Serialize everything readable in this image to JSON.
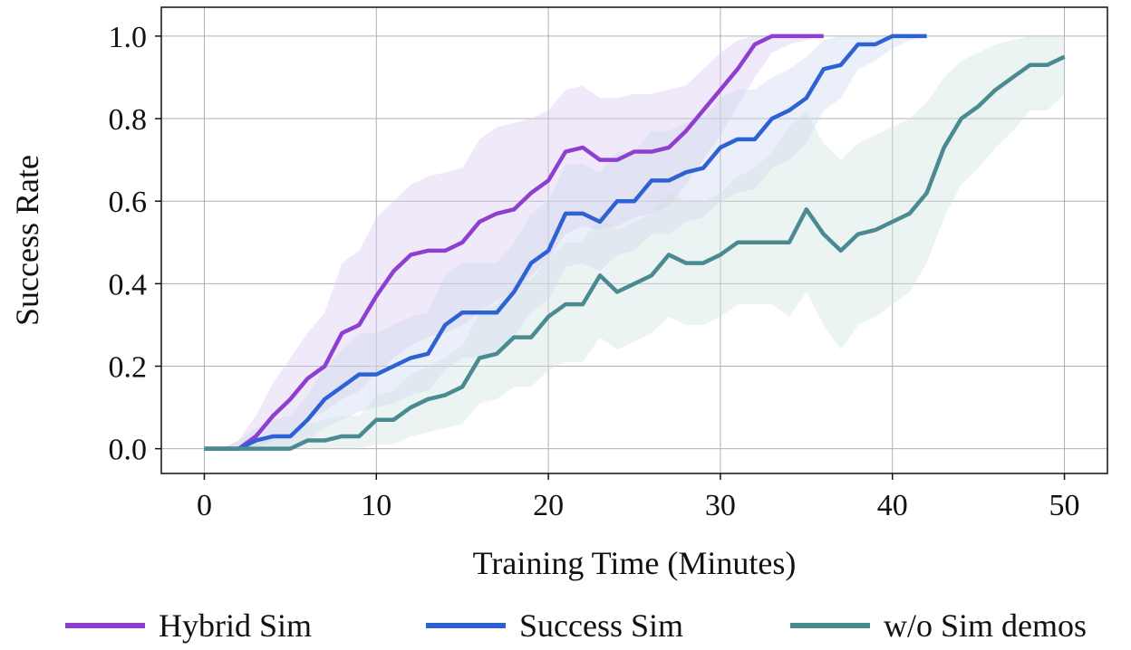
{
  "chart_data": {
    "type": "line",
    "xlabel": "Training Time (Minutes)",
    "ylabel": "Success Rate",
    "xlim": [
      -2.5,
      52.5
    ],
    "ylim": [
      -0.06,
      1.07
    ],
    "xticks": [
      0,
      10,
      20,
      30,
      40,
      50
    ],
    "yticks": [
      0.0,
      0.2,
      0.4,
      0.6,
      0.8,
      1.0
    ],
    "xtick_labels": [
      "0",
      "10",
      "20",
      "30",
      "40",
      "50"
    ],
    "ytick_labels": [
      "0.0",
      "0.2",
      "0.4",
      "0.6",
      "0.8",
      "1.0"
    ],
    "grid": true,
    "legend_position": "bottom",
    "series": [
      {
        "name": "Hybrid Sim",
        "color": "#8e3fd0",
        "band_color": "#d9c8ef",
        "x": [
          0,
          1,
          2,
          3,
          4,
          5,
          6,
          7,
          8,
          9,
          10,
          11,
          12,
          13,
          14,
          15,
          16,
          17,
          18,
          19,
          20,
          21,
          22,
          23,
          24,
          25,
          26,
          27,
          28,
          29,
          30,
          31,
          32,
          33,
          34,
          35,
          36
        ],
        "y": [
          0.0,
          0.0,
          0.0,
          0.03,
          0.08,
          0.12,
          0.17,
          0.2,
          0.28,
          0.3,
          0.37,
          0.43,
          0.47,
          0.48,
          0.48,
          0.5,
          0.55,
          0.57,
          0.58,
          0.62,
          0.65,
          0.72,
          0.73,
          0.7,
          0.7,
          0.72,
          0.72,
          0.73,
          0.77,
          0.82,
          0.87,
          0.92,
          0.98,
          1.0,
          1.0,
          1.0,
          1.0
        ],
        "lower": [
          0.0,
          0.0,
          0.0,
          0.0,
          0.02,
          0.04,
          0.07,
          0.09,
          0.12,
          0.14,
          0.18,
          0.22,
          0.25,
          0.27,
          0.28,
          0.3,
          0.33,
          0.36,
          0.38,
          0.42,
          0.46,
          0.52,
          0.54,
          0.53,
          0.54,
          0.56,
          0.57,
          0.59,
          0.64,
          0.7,
          0.76,
          0.83,
          0.9,
          0.96,
          0.98,
          0.99,
          1.0
        ],
        "upper": [
          0.0,
          0.0,
          0.02,
          0.08,
          0.16,
          0.22,
          0.28,
          0.33,
          0.45,
          0.48,
          0.56,
          0.6,
          0.64,
          0.66,
          0.67,
          0.68,
          0.75,
          0.78,
          0.79,
          0.8,
          0.82,
          0.87,
          0.88,
          0.85,
          0.85,
          0.86,
          0.86,
          0.87,
          0.88,
          0.92,
          0.96,
          0.99,
          1.0,
          1.0,
          1.0,
          1.0,
          1.0
        ]
      },
      {
        "name": "Success Sim",
        "color": "#2e62d3",
        "band_color": "#cdd8ef",
        "x": [
          0,
          1,
          2,
          3,
          4,
          5,
          6,
          7,
          8,
          9,
          10,
          11,
          12,
          13,
          14,
          15,
          16,
          17,
          18,
          19,
          20,
          21,
          22,
          23,
          24,
          25,
          26,
          27,
          28,
          29,
          30,
          31,
          32,
          33,
          34,
          35,
          36,
          37,
          38,
          39,
          40,
          41,
          42
        ],
        "y": [
          0.0,
          0.0,
          0.0,
          0.02,
          0.03,
          0.03,
          0.07,
          0.12,
          0.15,
          0.18,
          0.18,
          0.2,
          0.22,
          0.23,
          0.3,
          0.33,
          0.33,
          0.33,
          0.38,
          0.45,
          0.48,
          0.57,
          0.57,
          0.55,
          0.6,
          0.6,
          0.65,
          0.65,
          0.67,
          0.68,
          0.73,
          0.75,
          0.75,
          0.8,
          0.82,
          0.85,
          0.92,
          0.93,
          0.98,
          0.98,
          1.0,
          1.0,
          1.0
        ],
        "lower": [
          0.0,
          0.0,
          0.0,
          0.0,
          0.0,
          0.0,
          0.02,
          0.05,
          0.07,
          0.09,
          0.1,
          0.11,
          0.13,
          0.14,
          0.19,
          0.22,
          0.22,
          0.23,
          0.27,
          0.33,
          0.36,
          0.44,
          0.45,
          0.43,
          0.47,
          0.48,
          0.52,
          0.52,
          0.55,
          0.56,
          0.6,
          0.62,
          0.63,
          0.68,
          0.7,
          0.74,
          0.82,
          0.85,
          0.92,
          0.94,
          0.97,
          0.99,
          1.0
        ],
        "upper": [
          0.0,
          0.0,
          0.02,
          0.05,
          0.07,
          0.08,
          0.13,
          0.2,
          0.24,
          0.28,
          0.28,
          0.3,
          0.32,
          0.33,
          0.42,
          0.45,
          0.45,
          0.45,
          0.5,
          0.57,
          0.6,
          0.69,
          0.69,
          0.67,
          0.72,
          0.72,
          0.77,
          0.77,
          0.79,
          0.8,
          0.85,
          0.87,
          0.87,
          0.9,
          0.92,
          0.95,
          0.99,
          1.0,
          1.0,
          1.0,
          1.0,
          1.0,
          1.0
        ]
      },
      {
        "name": "w/o Sim demos",
        "color": "#4a8a91",
        "band_color": "#cfe2e2",
        "x": [
          0,
          1,
          2,
          3,
          4,
          5,
          6,
          7,
          8,
          9,
          10,
          11,
          12,
          13,
          14,
          15,
          16,
          17,
          18,
          19,
          20,
          21,
          22,
          23,
          24,
          25,
          26,
          27,
          28,
          29,
          30,
          31,
          32,
          33,
          34,
          35,
          36,
          37,
          38,
          39,
          40,
          41,
          42,
          43,
          44,
          45,
          46,
          47,
          48,
          49,
          50
        ],
        "y": [
          0.0,
          0.0,
          0.0,
          0.0,
          0.0,
          0.0,
          0.02,
          0.02,
          0.03,
          0.03,
          0.07,
          0.07,
          0.1,
          0.12,
          0.13,
          0.15,
          0.22,
          0.23,
          0.27,
          0.27,
          0.32,
          0.35,
          0.35,
          0.42,
          0.38,
          0.4,
          0.42,
          0.47,
          0.45,
          0.45,
          0.47,
          0.5,
          0.5,
          0.5,
          0.5,
          0.58,
          0.52,
          0.48,
          0.52,
          0.53,
          0.55,
          0.57,
          0.62,
          0.73,
          0.8,
          0.83,
          0.87,
          0.9,
          0.93,
          0.93,
          0.95
        ],
        "lower": [
          0.0,
          0.0,
          0.0,
          0.0,
          0.0,
          0.0,
          0.0,
          0.0,
          0.0,
          0.0,
          0.01,
          0.01,
          0.03,
          0.04,
          0.05,
          0.06,
          0.11,
          0.12,
          0.15,
          0.15,
          0.19,
          0.21,
          0.21,
          0.27,
          0.24,
          0.26,
          0.28,
          0.32,
          0.3,
          0.3,
          0.32,
          0.35,
          0.35,
          0.35,
          0.32,
          0.38,
          0.3,
          0.24,
          0.3,
          0.32,
          0.35,
          0.38,
          0.45,
          0.56,
          0.64,
          0.68,
          0.73,
          0.77,
          0.82,
          0.82,
          0.86
        ],
        "upper": [
          0.0,
          0.0,
          0.0,
          0.02,
          0.03,
          0.04,
          0.06,
          0.07,
          0.08,
          0.08,
          0.13,
          0.14,
          0.18,
          0.2,
          0.22,
          0.25,
          0.33,
          0.35,
          0.4,
          0.41,
          0.46,
          0.5,
          0.5,
          0.57,
          0.53,
          0.55,
          0.57,
          0.62,
          0.6,
          0.6,
          0.62,
          0.66,
          0.68,
          0.72,
          0.78,
          0.82,
          0.74,
          0.7,
          0.74,
          0.76,
          0.78,
          0.8,
          0.84,
          0.9,
          0.94,
          0.96,
          0.98,
          0.99,
          1.0,
          1.0,
          1.0
        ]
      }
    ]
  }
}
